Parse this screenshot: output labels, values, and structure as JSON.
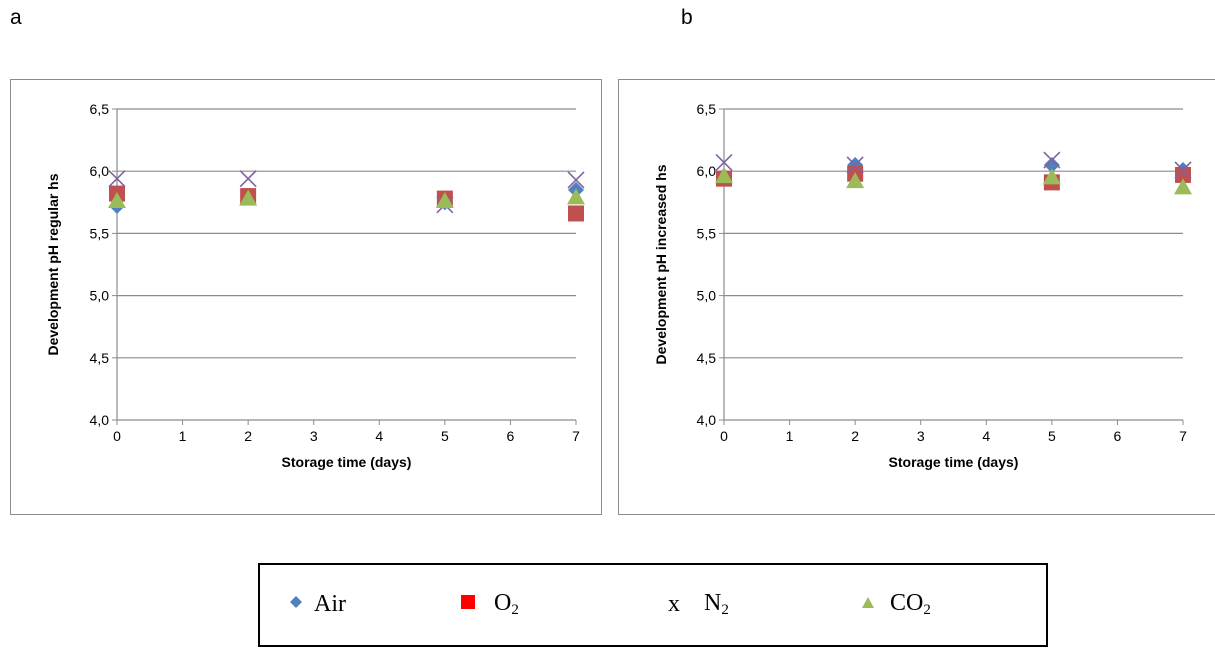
{
  "panels": {
    "a": "a",
    "b": "b"
  },
  "colors": {
    "Air": "#4f81bd",
    "O2": "#c0504d",
    "N2": "#8064a2",
    "CO2": "#9bbb59",
    "grid": "#8c8c8c"
  },
  "legend": [
    {
      "key": "Air",
      "marker": "diamond",
      "marker_text": "",
      "label": "Air",
      "sub": "",
      "color": "#4f81bd"
    },
    {
      "key": "O2",
      "marker": "square",
      "marker_text": "",
      "label": "O",
      "sub": "2",
      "color": "#ff0000"
    },
    {
      "key": "N2",
      "marker": "text",
      "marker_text": "x",
      "label": "N",
      "sub": "2",
      "color": "#000000"
    },
    {
      "key": "CO2",
      "marker": "triangle",
      "marker_text": "",
      "label": "CO",
      "sub": "2",
      "color": "#9bbb59"
    }
  ],
  "chart_data": [
    {
      "type": "scatter",
      "panel": "a",
      "title": "",
      "xlabel": "Storage time (days)",
      "ylabel": "Development pH regular hs",
      "xlim": [
        0,
        7
      ],
      "ylim": [
        4.0,
        6.5
      ],
      "xticks": [
        "0",
        "1",
        "2",
        "3",
        "4",
        "5",
        "6",
        "7"
      ],
      "yticks": [
        "4,0",
        "4,5",
        "5,0",
        "5,5",
        "6,0",
        "6,5"
      ],
      "grid": true,
      "x": [
        0,
        2,
        5,
        7
      ],
      "series": [
        {
          "key": "Air",
          "marker": "diamond",
          "values": [
            5.72,
            5.8,
            5.75,
            5.85
          ]
        },
        {
          "key": "O2",
          "marker": "square",
          "values": [
            5.82,
            5.8,
            5.78,
            5.66
          ]
        },
        {
          "key": "N2",
          "marker": "x",
          "values": [
            5.94,
            5.94,
            5.73,
            5.93
          ]
        },
        {
          "key": "CO2",
          "marker": "triangle",
          "values": [
            5.76,
            5.78,
            5.76,
            5.79
          ]
        }
      ]
    },
    {
      "type": "scatter",
      "panel": "b",
      "title": "",
      "xlabel": "Storage time (days)",
      "ylabel": "Development pH increased hs",
      "xlim": [
        0,
        7
      ],
      "ylim": [
        4.0,
        6.5
      ],
      "xticks": [
        "0",
        "1",
        "2",
        "3",
        "4",
        "5",
        "6",
        "7"
      ],
      "yticks": [
        "4,0",
        "4,5",
        "5,0",
        "5,5",
        "6,0",
        "6,5"
      ],
      "grid": true,
      "x": [
        0,
        2,
        5,
        7
      ],
      "series": [
        {
          "key": "Air",
          "marker": "diamond",
          "values": [
            5.96,
            6.05,
            6.05,
            6.01
          ]
        },
        {
          "key": "O2",
          "marker": "square",
          "values": [
            5.94,
            5.98,
            5.91,
            5.97
          ]
        },
        {
          "key": "N2",
          "marker": "x",
          "values": [
            6.07,
            6.05,
            6.09,
            6.01
          ]
        },
        {
          "key": "CO2",
          "marker": "triangle",
          "values": [
            5.96,
            5.92,
            5.95,
            5.87
          ]
        }
      ]
    }
  ]
}
